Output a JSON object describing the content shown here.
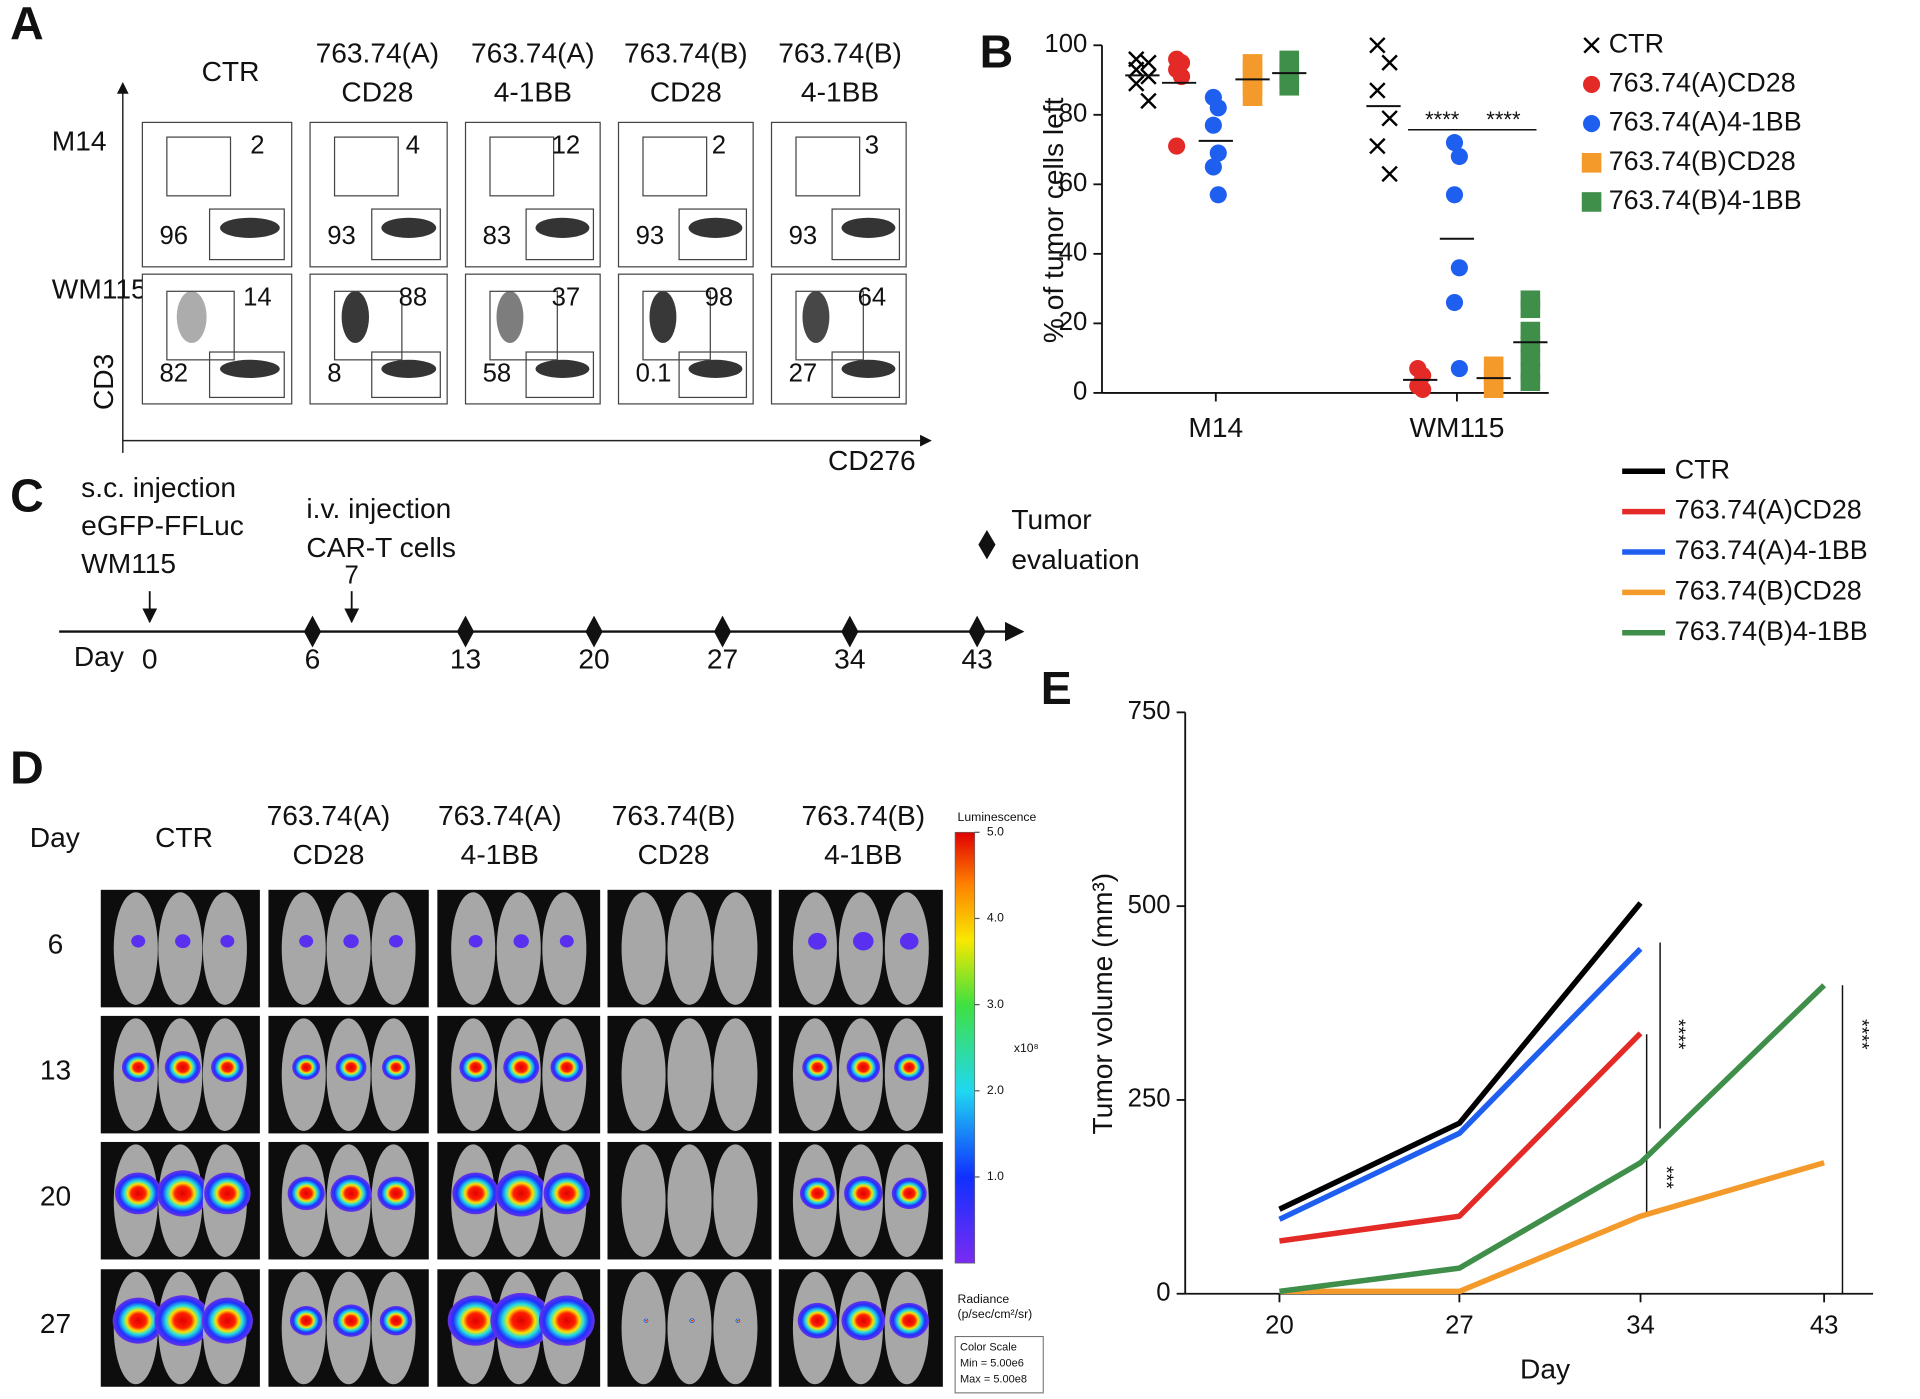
{
  "panel_a": {
    "label": "A",
    "columns": [
      [
        "CTR"
      ],
      [
        "763.74(A)",
        "CD28"
      ],
      [
        "763.74(A)",
        "4-1BB"
      ],
      [
        "763.74(B)",
        "CD28"
      ],
      [
        "763.74(B)",
        "4-1BB"
      ]
    ],
    "rows": [
      "M14",
      "WM115"
    ],
    "y_axis": "CD3",
    "x_axis": "CD276",
    "upper_gate": [
      [
        2,
        4,
        12,
        2,
        3
      ],
      [
        14,
        88,
        37,
        98,
        64
      ]
    ],
    "lower_gate": [
      [
        96,
        93,
        83,
        93,
        93
      ],
      [
        82,
        8,
        58,
        0.1,
        27
      ]
    ]
  },
  "chart_data": [
    {
      "type": "dot",
      "label": "B",
      "y_label": "% of tumor cells left",
      "categories": [
        "M14",
        "WM115"
      ],
      "ylim": [
        0,
        100
      ],
      "yticks": [
        0,
        20,
        40,
        60,
        80,
        100
      ],
      "legend": "right",
      "series": [
        {
          "name": "CTR",
          "color": "#000000",
          "marker": "x",
          "values": [
            [
              96,
              95,
              93,
              91,
              89,
              84
            ],
            [
              100,
              95,
              87,
              79,
              71,
              63
            ]
          ]
        },
        {
          "name": "763.74(A)CD28",
          "color": "#e32a27",
          "marker": "circle",
          "values": [
            [
              96,
              95,
              93,
              91,
              71
            ],
            [
              7,
              5,
              2,
              1
            ]
          ]
        },
        {
          "name": "763.74(A)4-1BB",
          "color": "#1f5ff0",
          "marker": "circle",
          "values": [
            [
              85,
              82,
              77,
              69,
              65,
              57
            ],
            [
              72,
              68,
              57,
              36,
              26,
              7
            ]
          ]
        },
        {
          "name": "763.74(B)CD28",
          "color": "#f39a2b",
          "marker": "square",
          "values": [
            [
              95,
              93,
              90,
              88,
              85
            ],
            [
              8,
              5,
              3,
              1
            ]
          ]
        },
        {
          "name": "763.74(B)4-1BB",
          "color": "#3f8f4a",
          "marker": "square",
          "values": [
            [
              96,
              94,
              92,
              90,
              88
            ],
            [
              27,
              24,
              18,
              14,
              10,
              6,
              3
            ]
          ]
        }
      ],
      "annotations": [
        "****",
        "****"
      ]
    },
    {
      "type": "line",
      "label": "E",
      "x_label": "Day",
      "y_label": "Tumor volume (mm³)",
      "categories": [
        "20",
        "27",
        "34",
        "43"
      ],
      "ylim": [
        0,
        750
      ],
      "yticks": [
        0,
        250,
        500,
        750
      ],
      "legend": "top-right",
      "series": [
        {
          "name": "CTR",
          "color": "#000000",
          "values": [
            109,
            220,
            504,
            null
          ]
        },
        {
          "name": "763.74(A)CD28",
          "color": "#e32a27",
          "values": [
            68,
            100,
            336,
            null
          ]
        },
        {
          "name": "763.74(A)4-1BB",
          "color": "#1f5ff0",
          "values": [
            96,
            207,
            445,
            null
          ]
        },
        {
          "name": "763.74(B)CD28",
          "color": "#f39a2b",
          "values": [
            3,
            3,
            100,
            169
          ]
        },
        {
          "name": "763.74(B)4-1BB",
          "color": "#3f8f4a",
          "values": [
            3,
            33,
            169,
            398
          ]
        }
      ],
      "annotations": [
        "****",
        "***",
        "****"
      ]
    }
  ],
  "panel_c": {
    "label": "C",
    "injection_label": [
      "s.c. injection",
      "eGFP-FFLuc",
      "WM115"
    ],
    "treatment_label": [
      "i.v. injection",
      "CAR-T cells"
    ],
    "treatment_day": 7,
    "evaluation_label": [
      "Tumor",
      "evaluation"
    ],
    "day_label": "Day",
    "days": [
      0,
      6,
      13,
      20,
      27,
      34,
      43
    ]
  },
  "panel_d": {
    "label": "D",
    "row_header": "Day",
    "columns": [
      [
        "CTR"
      ],
      [
        "763.74(A)",
        "CD28"
      ],
      [
        "763.74(A)",
        "4-1BB"
      ],
      [
        "763.74(B)",
        "CD28"
      ],
      [
        "763.74(B)",
        "4-1BB"
      ]
    ],
    "days": [
      6,
      13,
      20,
      27
    ],
    "scale_title": "Luminescence",
    "scale_ticks": [
      {
        "value": 5,
        "label": "5.0"
      },
      {
        "value": 4,
        "label": "4.0"
      },
      {
        "value": 3,
        "label": "3.0"
      },
      {
        "value": 2,
        "label": "2.0"
      },
      {
        "value": 1,
        "label": "1.0"
      }
    ],
    "scale_multiplier": "x10⁸",
    "radiance": [
      "Radiance",
      "(p/sec/cm²/sr)"
    ],
    "color_scale": [
      "Color Scale",
      "Min = 5.00e6",
      "Max = 5.00e8"
    ]
  }
}
